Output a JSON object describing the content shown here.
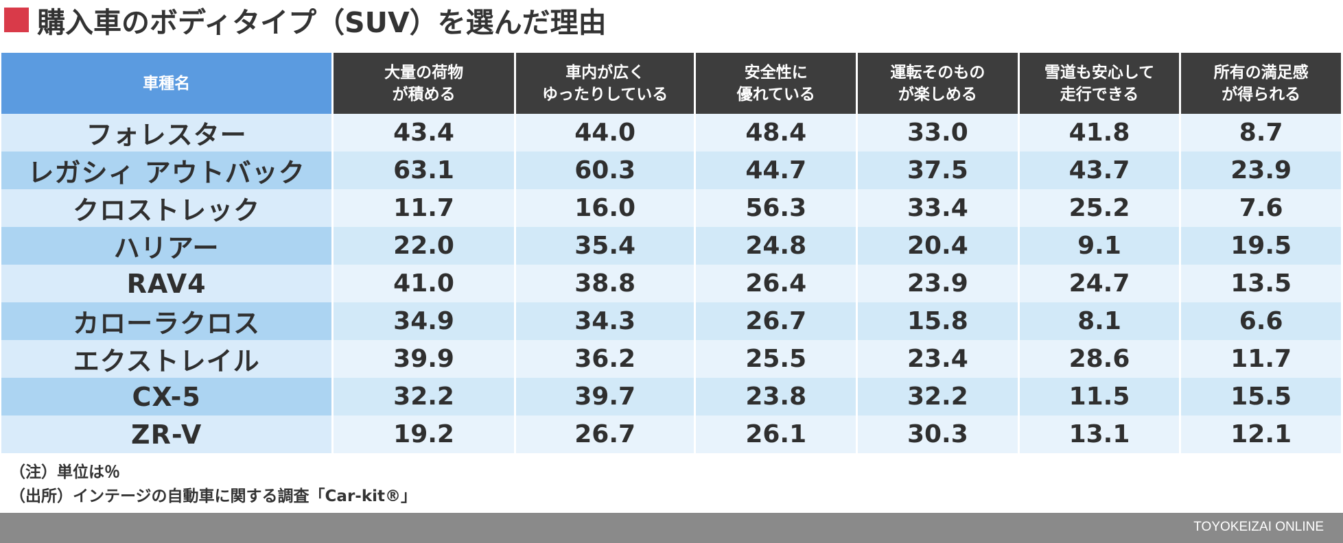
{
  "title": "購入車のボディタイプ（SUV）を選んだ理由",
  "colors": {
    "title_marker": "#d93a49",
    "header_name": "#5b9be0",
    "header_dark": "#3d3d3d",
    "row_light": "#e8f3fc",
    "row_dark": "#d2e9f8",
    "footer": "#8a8a8a"
  },
  "chart_data": {
    "type": "table",
    "columns": [
      "車種名",
      "大量の荷物\nが積める",
      "車内が広く\nゆったりしている",
      "安全性に\n優れている",
      "運転そのもの\nが楽しめる",
      "雪道も安心して\n走行できる",
      "所有の満足感\nが得られる"
    ],
    "rows": [
      {
        "name": "フォレスター",
        "values": [
          "43.4",
          "44.0",
          "48.4",
          "33.0",
          "41.8",
          "8.7"
        ]
      },
      {
        "name": "レガシィ アウトバック",
        "values": [
          "63.1",
          "60.3",
          "44.7",
          "37.5",
          "43.7",
          "23.9"
        ]
      },
      {
        "name": "クロストレック",
        "values": [
          "11.7",
          "16.0",
          "56.3",
          "33.4",
          "25.2",
          "7.6"
        ]
      },
      {
        "name": "ハリアー",
        "values": [
          "22.0",
          "35.4",
          "24.8",
          "20.4",
          "9.1",
          "19.5"
        ]
      },
      {
        "name": "RAV4",
        "values": [
          "41.0",
          "38.8",
          "26.4",
          "23.9",
          "24.7",
          "13.5"
        ]
      },
      {
        "name": "カローラクロス",
        "values": [
          "34.9",
          "34.3",
          "26.7",
          "15.8",
          "8.1",
          "6.6"
        ]
      },
      {
        "name": "エクストレイル",
        "values": [
          "39.9",
          "36.2",
          "25.5",
          "23.4",
          "28.6",
          "11.7"
        ]
      },
      {
        "name": "CX-5",
        "values": [
          "32.2",
          "39.7",
          "23.8",
          "32.2",
          "11.5",
          "15.5"
        ]
      },
      {
        "name": "ZR-V",
        "values": [
          "19.2",
          "26.7",
          "26.1",
          "30.3",
          "13.1",
          "12.1"
        ]
      }
    ]
  },
  "notes": {
    "unit": "（注）単位は％",
    "source": "（出所）インテージの自動車に関する調査「Car-kit®」"
  },
  "footer": {
    "brand": "TOYOKEIZAI ONLINE"
  }
}
